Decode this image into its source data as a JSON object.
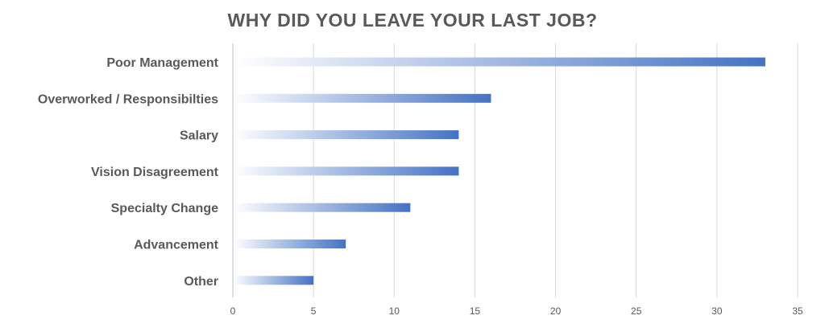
{
  "chart_data": {
    "type": "bar",
    "orientation": "horizontal",
    "title": "WHY DID YOU LEAVE YOUR LAST JOB?",
    "categories": [
      "Poor Management",
      "Overworked / Responsibilties",
      "Salary",
      "Vision Disagreement",
      "Specialty Change",
      "Advancement",
      "Other"
    ],
    "values": [
      33,
      16,
      14,
      14,
      11,
      7,
      5
    ],
    "xlabel": "",
    "ylabel": "",
    "xlim": [
      0,
      35
    ],
    "xticks": [
      0,
      5,
      10,
      15,
      20,
      25,
      30,
      35
    ],
    "grid": true,
    "legend": "none",
    "colors": {
      "bar": "#4472c4",
      "bar_fade": "#ffffff",
      "gridline": "#d9d9d9",
      "axis": "#bfbfbf",
      "text": "#595959"
    }
  }
}
